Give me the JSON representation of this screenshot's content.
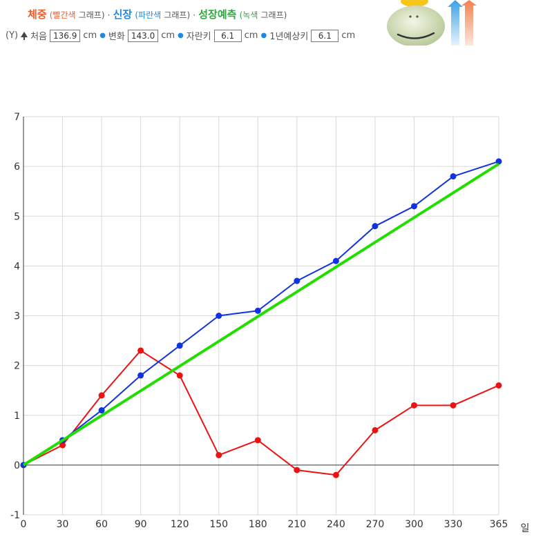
{
  "legend": {
    "weight_title": "체중",
    "weight_sub": "(빨간색",
    "weight_sub2": "그래프)",
    "sep1": "·",
    "height_title": "신장",
    "height_sub": "(파란색",
    "height_sub2": "그래프)",
    "sep2": "·",
    "growth_title": "성장예측",
    "growth_sub": "(녹색",
    "growth_sub2": "그래프)",
    "y_label": "(Y)",
    "start_label": "처음",
    "start_value": "136.9",
    "unit1": "cm",
    "change_label": "변화",
    "change_value": "143.0",
    "unit2": "cm",
    "grown_label": "자란키",
    "grown_value": "6.1",
    "unit3": "cm",
    "yearly_label": "1년예상키",
    "yearly_value": "6.1",
    "unit4": "cm"
  },
  "colors": {
    "weight": "#ee1111",
    "height": "#1133dd",
    "growth": "#22dd00",
    "grid": "#d8d8d8",
    "zero": "#333333"
  },
  "icons": {
    "tree": "tree-icon",
    "mascot": "mascot-icon"
  },
  "chart_data": {
    "type": "line",
    "x": [
      0,
      30,
      60,
      90,
      120,
      150,
      180,
      210,
      240,
      270,
      300,
      330,
      365
    ],
    "xlabel": "일",
    "ylabel": "",
    "xlim": [
      0,
      365
    ],
    "ylim": [
      -1,
      7
    ],
    "x_ticks": [
      0,
      30,
      60,
      90,
      120,
      150,
      180,
      210,
      240,
      270,
      300,
      330,
      365
    ],
    "y_ticks": [
      -1,
      0,
      1,
      2,
      3,
      4,
      5,
      6,
      7
    ],
    "grid": true,
    "series": [
      {
        "key": "weight",
        "values": [
          0,
          0.4,
          1.4,
          2.3,
          1.8,
          0.2,
          0.5,
          -0.1,
          -0.2,
          0.7,
          1.2,
          1.2,
          1.6
        ],
        "markers": true
      },
      {
        "key": "height",
        "values": [
          0,
          0.5,
          1.1,
          1.8,
          2.4,
          3.0,
          3.1,
          3.7,
          4.1,
          4.8,
          5.2,
          5.8,
          6.1
        ],
        "markers": true
      },
      {
        "key": "growth",
        "x": [
          0,
          365
        ],
        "values": [
          0,
          6.05
        ],
        "markers": false
      }
    ]
  }
}
